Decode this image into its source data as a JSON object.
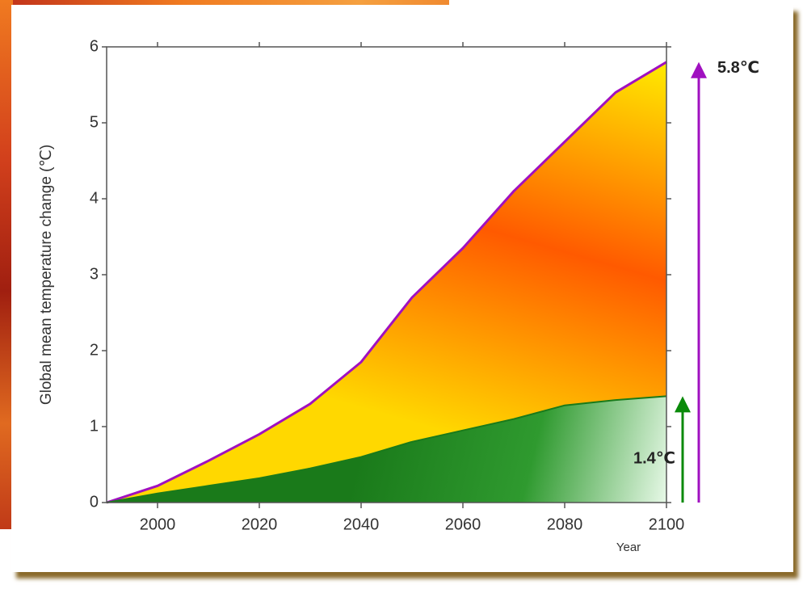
{
  "chart_data": {
    "type": "area",
    "y_label": "Global mean temperature change (℃)",
    "x_label": "Year",
    "x": [
      1990,
      2000,
      2010,
      2020,
      2030,
      2040,
      2050,
      2060,
      2070,
      2080,
      2090,
      2100
    ],
    "series": [
      {
        "color": "#a010c0",
        "values": [
          0,
          0.22,
          0.55,
          0.9,
          1.3,
          1.85,
          2.7,
          3.35,
          4.1,
          4.75,
          5.4,
          5.8
        ]
      },
      {
        "color": "#1a7a1a",
        "values": [
          0,
          0.12,
          0.22,
          0.32,
          0.45,
          0.6,
          0.8,
          0.95,
          1.1,
          1.28,
          1.35,
          1.4
        ]
      }
    ],
    "annotations": [
      {
        "text": "5.8℃",
        "color": "#a010c0"
      },
      {
        "text": "1.4℃",
        "color": "#0a8a0a"
      }
    ],
    "xlim": [
      1990,
      2100
    ],
    "xticks": [
      2000,
      2020,
      2040,
      2060,
      2080,
      2100
    ],
    "ylim": [
      0,
      6
    ],
    "yticks": [
      0,
      1,
      2,
      3,
      4,
      5,
      6
    ]
  }
}
